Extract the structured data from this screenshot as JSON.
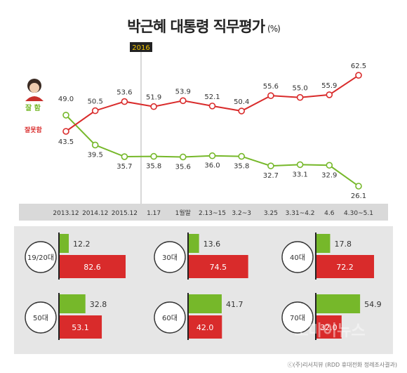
{
  "title": {
    "main": "박근혜 대통령 직무평가",
    "unit": "(%)"
  },
  "chart_data": [
    {
      "type": "line",
      "categories": [
        "2013.12",
        "2014.12",
        "2015.12",
        "1.17",
        "1월말",
        "2.13~15",
        "3.2~3",
        "3.25",
        "3.31~4.2",
        "4.6",
        "4.30~5.1"
      ],
      "series": [
        {
          "name": "잘 함",
          "color": "#76b82a",
          "values": [
            49.0,
            39.5,
            35.7,
            35.8,
            35.6,
            36.0,
            35.8,
            32.7,
            33.1,
            32.9,
            26.1
          ]
        },
        {
          "name": "잘못함",
          "color": "#d92b2b",
          "values": [
            43.5,
            50.5,
            53.6,
            51.9,
            53.9,
            52.1,
            50.4,
            55.6,
            55.0,
            55.9,
            62.5
          ]
        }
      ],
      "annotations": [
        {
          "text": "2016"
        }
      ],
      "value_labels": [
        [
          "49.0",
          "39.5",
          "35.7",
          "35.8",
          "35.6",
          "36.0",
          "35.8",
          "32.7",
          "33.1",
          "32.9",
          "26.1"
        ],
        [
          "43.5",
          "50.5",
          "53.6",
          "51.9",
          "53.9",
          "52.1",
          "50.4",
          "55.6",
          "55.0",
          "55.9",
          "62.5"
        ]
      ],
      "ylim": [
        20,
        70
      ]
    },
    {
      "type": "bar",
      "categories": [
        "19/20대",
        "30대",
        "40대",
        "50대",
        "60대",
        "70대"
      ],
      "series": [
        {
          "name": "잘 함",
          "color": "#76b82a",
          "values": [
            12.2,
            13.6,
            17.8,
            32.8,
            41.7,
            54.9
          ]
        },
        {
          "name": "잘못함",
          "color": "#d92b2b",
          "values": [
            82.6,
            74.5,
            72.2,
            53.1,
            42.0,
            32.0
          ]
        }
      ],
      "value_labels": [
        [
          "12.2",
          "13.6",
          "17.8",
          "32.8",
          "41.7",
          "54.9"
        ],
        [
          "82.6",
          "74.5",
          "72.2",
          "53.1",
          "42.0",
          "32.0"
        ]
      ],
      "xlim": [
        0,
        100
      ]
    }
  ],
  "footer": {
    "text": "ⓒ(주)리서치뷰 (RDD 휴대전화 정례조사결과)"
  },
  "watermark": {
    "text": "오마이뉴스"
  }
}
